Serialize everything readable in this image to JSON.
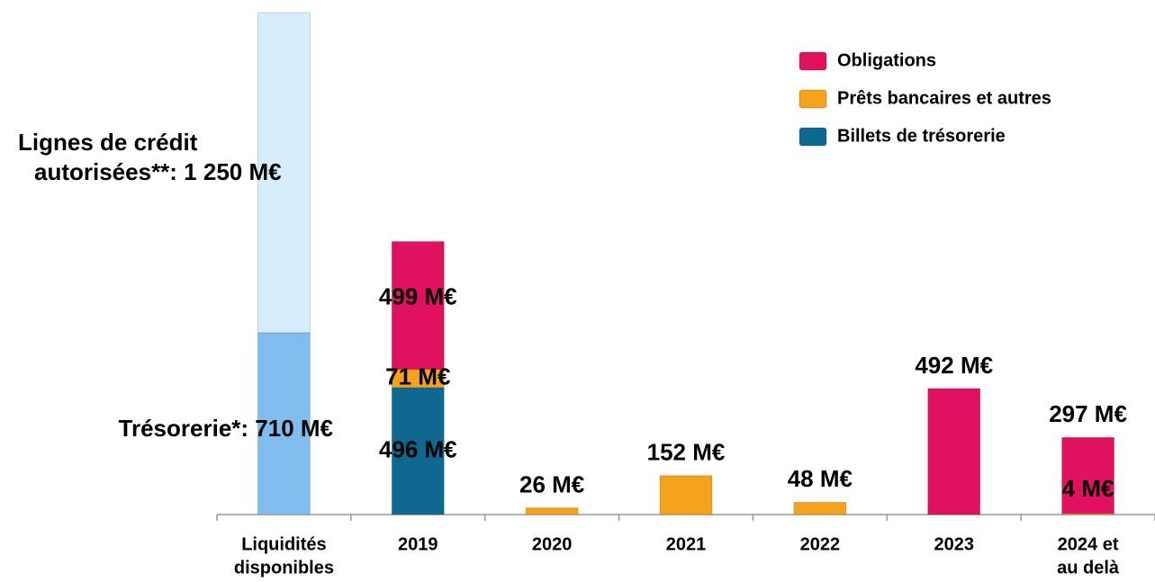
{
  "chart_data": {
    "type": "bar",
    "stacked": true,
    "categories": [
      [
        "Liquidités",
        "disponibles"
      ],
      [
        "2019"
      ],
      [
        "2020"
      ],
      [
        "2021"
      ],
      [
        "2022"
      ],
      [
        "2023"
      ],
      [
        "2024 et",
        "au delà"
      ]
    ],
    "ylim": [
      0,
      1960
    ],
    "legend": "top-right",
    "series": [
      {
        "name": "Obligations",
        "color": "#e0115f",
        "values": [
          null,
          499,
          null,
          null,
          null,
          492,
          297
        ],
        "value_labels": [
          null,
          "499 M€",
          null,
          null,
          null,
          "492 M€",
          "297 M€"
        ]
      },
      {
        "name": "Prêts bancaires et autres",
        "color": "#f5a21d",
        "values": [
          null,
          71,
          26,
          152,
          48,
          null,
          4
        ],
        "value_labels": [
          null,
          "71 M€",
          "26 M€",
          "152 M€",
          "48 M€",
          null,
          "4 M€"
        ]
      },
      {
        "name": "Billets de trésorerie",
        "color": "#0f6890",
        "values": [
          null,
          496,
          null,
          null,
          null,
          null,
          null
        ],
        "value_labels": [
          null,
          "496 M€",
          null,
          null,
          null,
          null,
          null
        ]
      }
    ],
    "liquidity": [
      {
        "value": 710,
        "color": "#80bdee",
        "label": [
          "Trésorerie*: 710 M€"
        ]
      },
      {
        "value": 1250,
        "color": "#d6edfb",
        "label": [
          "Lignes de crédit",
          "autorisées**: 1 250 M€"
        ]
      }
    ]
  }
}
